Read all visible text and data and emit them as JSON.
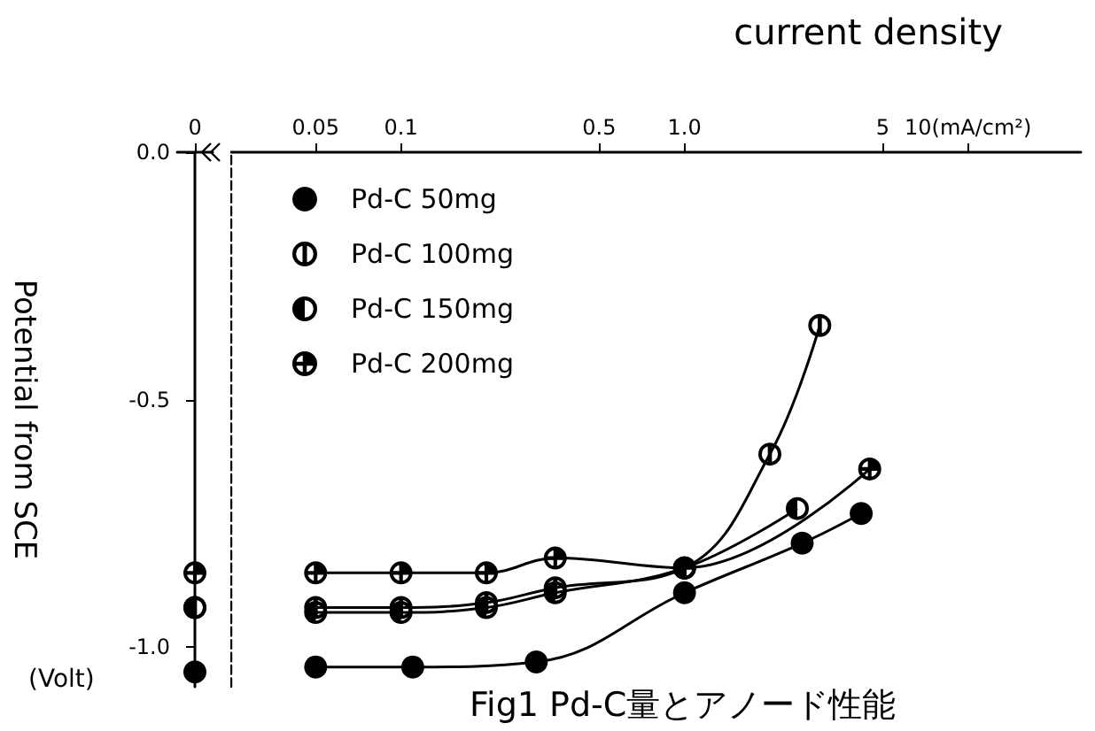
{
  "chart_data": [
    {
      "type": "scatter",
      "ylabel": "Potential from SCE",
      "annotations": [
        "(Volt)"
      ],
      "categories": [
        "0"
      ],
      "ylim": [
        -1.08,
        0
      ],
      "yticks": [
        {
          "value": 0,
          "label": "0.0"
        },
        {
          "value": -0.5,
          "label": "-0.5"
        },
        {
          "value": -1,
          "label": "-1.0"
        }
      ],
      "legend": false,
      "grid": false,
      "marker": "circle",
      "series": [
        {
          "color": "#000000",
          "values": [
            -1.05
          ]
        },
        {
          "color": "#000000",
          "values": [
            -0.92
          ]
        },
        {
          "color": "#000000",
          "values": [
            -0.92
          ]
        },
        {
          "color": "#000000",
          "values": [
            -0.85
          ]
        }
      ]
    },
    {
      "type": "line",
      "title": "Fig1 Pd-C量とアノード性能",
      "xlabel": "current density",
      "log": "x",
      "xlim": [
        0.025,
        25
      ],
      "xticks": [
        0.05,
        0.1,
        0.5,
        {
          "value": 1,
          "label": "1.0"
        },
        5,
        {
          "value": 10,
          "label": "10(mA/cm²)"
        }
      ],
      "ylim": [
        -1.08,
        0
      ],
      "tick_labels": "x",
      "legend": "top left",
      "grid": false,
      "marker": "circle",
      "series": [
        {
          "name": "Pd-C 50mg",
          "color": "#000000",
          "x": [
            0.05,
            0.11,
            0.3,
            1,
            2.6,
            4.2
          ],
          "values": [
            -1.04,
            -1.04,
            -1.03,
            -0.89,
            -0.79,
            -0.73
          ]
        },
        {
          "name": "Pd-C 100mg",
          "color": "#000000",
          "x": [
            0.05,
            0.1,
            0.2,
            0.35,
            1,
            2,
            3
          ],
          "values": [
            -0.92,
            -0.92,
            -0.91,
            -0.88,
            -0.84,
            -0.61,
            -0.35
          ]
        },
        {
          "name": "Pd-C 150mg",
          "color": "#000000",
          "x": [
            0.05,
            0.1,
            0.2,
            0.35,
            1,
            2.5
          ],
          "values": [
            -0.93,
            -0.93,
            -0.92,
            -0.89,
            -0.84,
            -0.72
          ]
        },
        {
          "name": "Pd-C 200mg",
          "color": "#000000",
          "x": [
            0.05,
            0.1,
            0.2,
            0.35,
            1,
            4.5
          ],
          "values": [
            -0.85,
            -0.85,
            -0.85,
            -0.82,
            -0.84,
            -0.64
          ]
        }
      ]
    }
  ]
}
